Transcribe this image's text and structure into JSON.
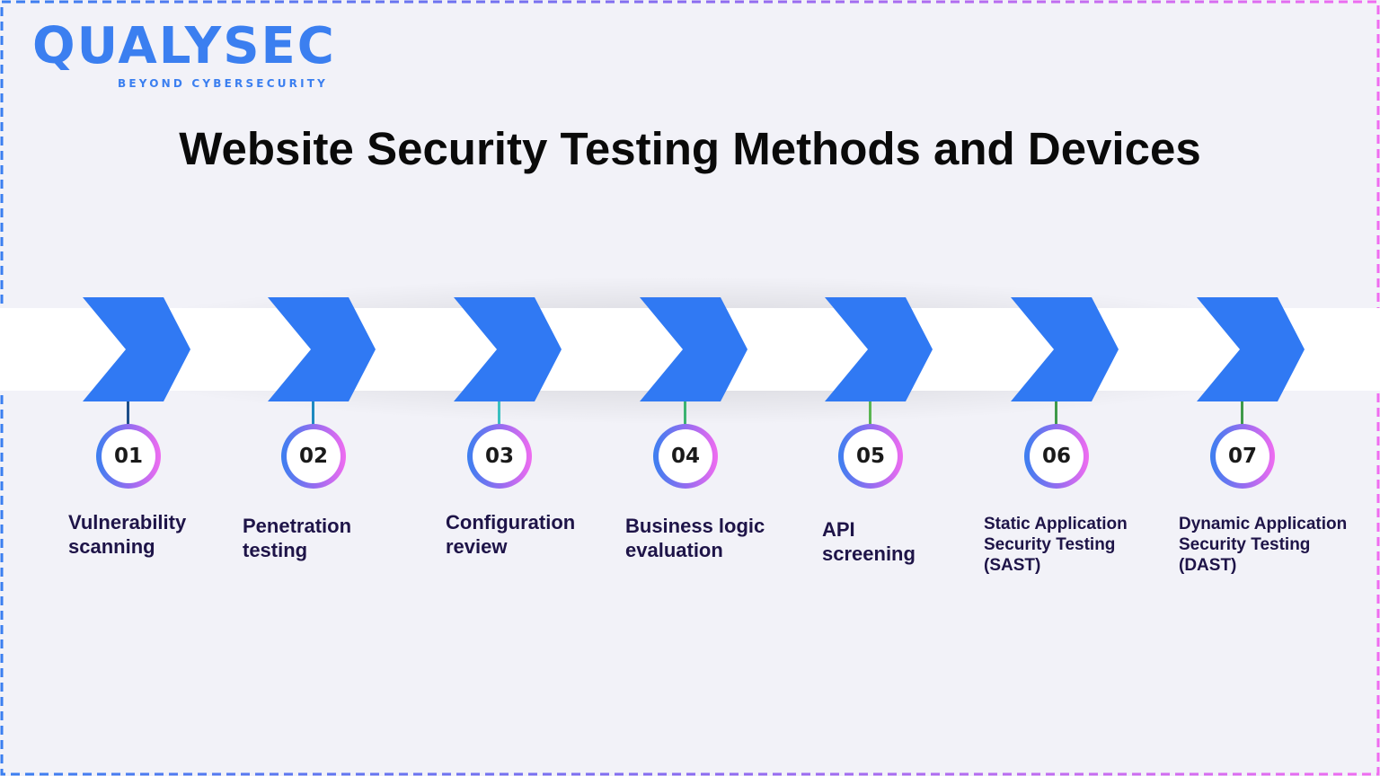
{
  "logo": {
    "name": "QUALYSEC",
    "tagline": "BEYOND CYBERSECURITY"
  },
  "title": "Website Security Testing Methods and Devices",
  "colors": {
    "chevron": "#3079f3",
    "border_start": "#3b7ff0",
    "border_end": "#f06cf0",
    "label": "#1e1448"
  },
  "steps": [
    {
      "number": "01",
      "label": "Vulnerability\nscanning",
      "connector": "#1d4e89"
    },
    {
      "number": "02",
      "label": "Penetration\ntesting",
      "connector": "#1f8ac0"
    },
    {
      "number": "03",
      "label": "Configuration\nreview",
      "connector": "#3bbfc0"
    },
    {
      "number": "04",
      "label": "Business logic\nevaluation",
      "connector": "#3cb371"
    },
    {
      "number": "05",
      "label": "API\nscreening",
      "connector": "#5ab552"
    },
    {
      "number": "06",
      "label": "Static Application\nSecurity Testing\n(SAST)",
      "connector": "#3f9a4a"
    },
    {
      "number": "07",
      "label": "Dynamic Application\nSecurity Testing\n(DAST)",
      "connector": "#3f9a4a"
    }
  ]
}
